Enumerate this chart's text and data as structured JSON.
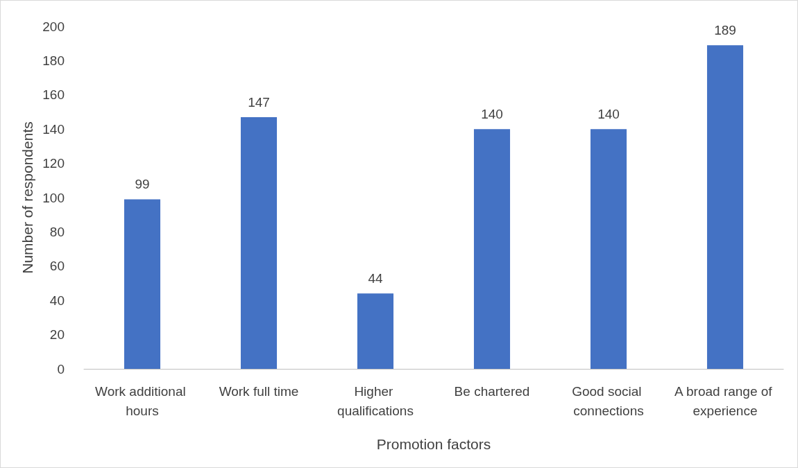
{
  "chart_data": {
    "type": "bar",
    "xlabel": "Promotion factors",
    "ylabel": "Number of respondents",
    "categories": [
      "Work additional hours",
      "Work full time",
      "Higher qualifications",
      "Be chartered",
      "Good social connections",
      "A broad range of experience"
    ],
    "values": [
      99,
      147,
      44,
      140,
      140,
      189
    ],
    "color": "#4472c4",
    "ylim": [
      0,
      200
    ],
    "yticks": [
      0,
      20,
      40,
      60,
      80,
      100,
      120,
      140,
      160,
      180,
      200
    ],
    "grid": false,
    "data_labels": true
  }
}
